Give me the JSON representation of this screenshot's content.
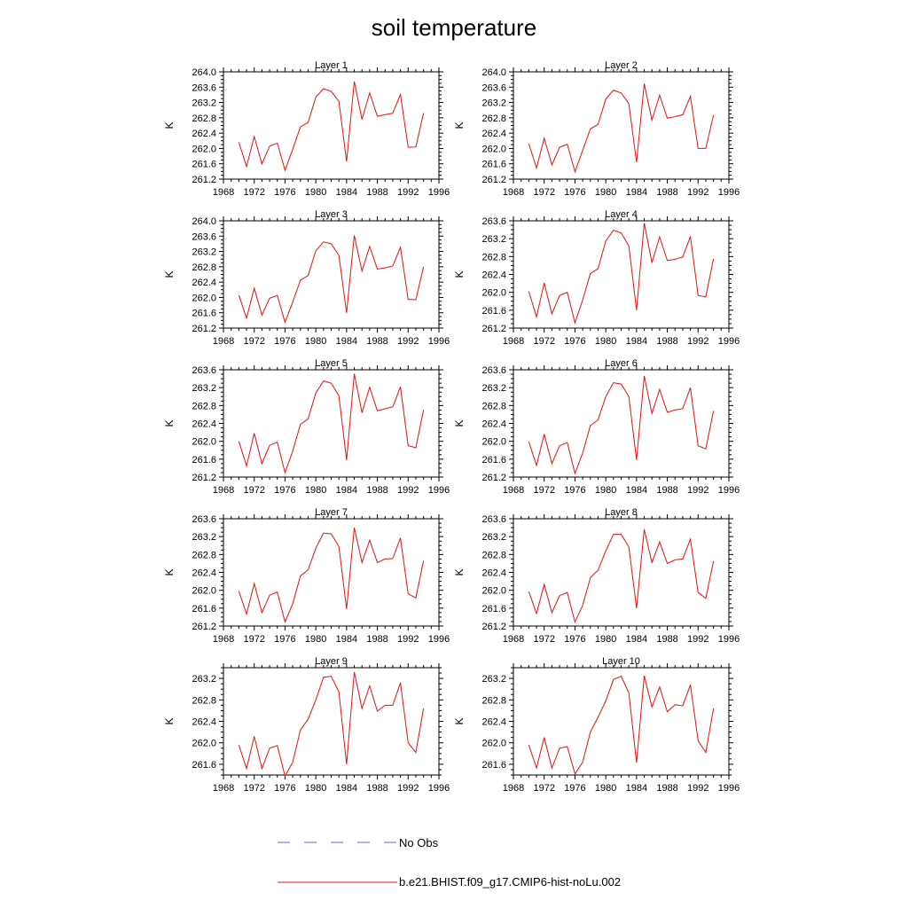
{
  "title": "soil temperature",
  "legend": {
    "items": [
      {
        "label": "No Obs",
        "color": "#6a6ad8",
        "style": "dashed"
      },
      {
        "label": "b.e21.BHIST.f09_g17.CMIP6-hist-noLu.002",
        "color": "#e81010",
        "style": "solid"
      }
    ]
  },
  "colors": {
    "series": "#e81010",
    "obs": "#6a6ad8"
  },
  "chart_data": [
    {
      "type": "line",
      "title": "Layer 1",
      "xlabel": "",
      "ylabel": "K",
      "xlim": [
        1968,
        1996
      ],
      "ylim": [
        261.2,
        264.0
      ],
      "xticks": [
        1968,
        1972,
        1976,
        1980,
        1984,
        1988,
        1992,
        1996
      ],
      "yticks": [
        261.2,
        261.6,
        262.0,
        262.4,
        262.8,
        263.2,
        263.6,
        264.0
      ],
      "x": [
        1970,
        1971,
        1972,
        1973,
        1974,
        1975,
        1976,
        1977,
        1978,
        1979,
        1980,
        1981,
        1982,
        1983,
        1984,
        1985,
        1986,
        1987,
        1988,
        1989,
        1990,
        1991,
        1992,
        1993,
        1994
      ],
      "series": [
        {
          "name": "b.e21.BHIST.f09_g17.CMIP6-hist-noLu.002",
          "values": [
            262.16,
            261.53,
            262.31,
            261.6,
            262.06,
            262.14,
            261.43,
            261.98,
            262.56,
            262.68,
            263.34,
            263.56,
            263.49,
            263.23,
            261.66,
            263.75,
            262.76,
            263.45,
            262.84,
            262.88,
            262.92,
            263.41,
            262.03,
            262.04,
            262.92
          ]
        }
      ]
    },
    {
      "type": "line",
      "title": "Layer 2",
      "xlabel": "",
      "ylabel": "K",
      "xlim": [
        1968,
        1996
      ],
      "ylim": [
        261.2,
        264.0
      ],
      "xticks": [
        1968,
        1972,
        1976,
        1980,
        1984,
        1988,
        1992,
        1996
      ],
      "yticks": [
        261.2,
        261.6,
        262.0,
        262.4,
        262.8,
        263.2,
        263.6,
        264.0
      ],
      "x": [
        1970,
        1971,
        1972,
        1973,
        1974,
        1975,
        1976,
        1977,
        1978,
        1979,
        1980,
        1981,
        1982,
        1983,
        1984,
        1985,
        1986,
        1987,
        1988,
        1989,
        1990,
        1991,
        1992,
        1993,
        1994
      ],
      "series": [
        {
          "name": "b.e21.BHIST.f09_g17.CMIP6-hist-noLu.002",
          "values": [
            262.12,
            261.49,
            262.27,
            261.57,
            262.03,
            262.11,
            261.39,
            261.95,
            262.51,
            262.63,
            263.29,
            263.52,
            263.45,
            263.17,
            261.64,
            263.69,
            262.74,
            263.39,
            262.79,
            262.83,
            262.88,
            263.36,
            262.0,
            262.0,
            262.87
          ]
        }
      ]
    },
    {
      "type": "line",
      "title": "Layer 3",
      "xlabel": "",
      "ylabel": "K",
      "xlim": [
        1968,
        1996
      ],
      "ylim": [
        261.2,
        264.0
      ],
      "xticks": [
        1968,
        1972,
        1976,
        1980,
        1984,
        1988,
        1992,
        1996
      ],
      "yticks": [
        261.2,
        261.6,
        262.0,
        262.4,
        262.8,
        263.2,
        263.6,
        264.0
      ],
      "x": [
        1970,
        1971,
        1972,
        1973,
        1974,
        1975,
        1976,
        1977,
        1978,
        1979,
        1980,
        1981,
        1982,
        1983,
        1984,
        1985,
        1986,
        1987,
        1988,
        1989,
        1990,
        1991,
        1992,
        1993,
        1994
      ],
      "series": [
        {
          "name": "b.e21.BHIST.f09_g17.CMIP6-hist-noLu.002",
          "values": [
            262.06,
            261.46,
            262.24,
            261.54,
            261.98,
            262.05,
            261.35,
            261.88,
            262.45,
            262.57,
            263.22,
            263.45,
            263.4,
            263.1,
            261.6,
            263.62,
            262.69,
            263.33,
            262.74,
            262.77,
            262.82,
            263.31,
            261.95,
            261.94,
            262.8
          ]
        }
      ]
    },
    {
      "type": "line",
      "title": "Layer 4",
      "xlabel": "",
      "ylabel": "K",
      "xlim": [
        1968,
        1996
      ],
      "ylim": [
        261.2,
        263.6
      ],
      "xticks": [
        1968,
        1972,
        1976,
        1980,
        1984,
        1988,
        1992,
        1996
      ],
      "yticks": [
        261.2,
        261.6,
        262.0,
        262.4,
        262.8,
        263.2,
        263.6
      ],
      "x": [
        1970,
        1971,
        1972,
        1973,
        1974,
        1975,
        1976,
        1977,
        1978,
        1979,
        1980,
        1981,
        1982,
        1983,
        1984,
        1985,
        1986,
        1987,
        1988,
        1989,
        1990,
        1991,
        1992,
        1993,
        1994
      ],
      "series": [
        {
          "name": "b.e21.BHIST.f09_g17.CMIP6-hist-noLu.002",
          "values": [
            262.02,
            261.45,
            262.21,
            261.52,
            261.93,
            262.0,
            261.32,
            261.83,
            262.42,
            262.53,
            263.15,
            263.39,
            263.33,
            263.04,
            261.6,
            263.55,
            262.66,
            263.24,
            262.71,
            262.74,
            262.79,
            263.25,
            261.93,
            261.9,
            262.75
          ]
        }
      ]
    },
    {
      "type": "line",
      "title": "Layer 5",
      "xlabel": "",
      "ylabel": "K",
      "xlim": [
        1968,
        1996
      ],
      "ylim": [
        261.2,
        263.6
      ],
      "xticks": [
        1968,
        1972,
        1976,
        1980,
        1984,
        1988,
        1992,
        1996
      ],
      "yticks": [
        261.2,
        261.6,
        262.0,
        262.4,
        262.8,
        263.2,
        263.6
      ],
      "x": [
        1970,
        1971,
        1972,
        1973,
        1974,
        1975,
        1976,
        1977,
        1978,
        1979,
        1980,
        1981,
        1982,
        1983,
        1984,
        1985,
        1986,
        1987,
        1988,
        1989,
        1990,
        1991,
        1992,
        1993,
        1994
      ],
      "series": [
        {
          "name": "b.e21.BHIST.f09_g17.CMIP6-hist-noLu.002",
          "values": [
            262.0,
            261.45,
            262.18,
            261.5,
            261.91,
            261.98,
            261.3,
            261.78,
            262.38,
            262.5,
            263.08,
            263.35,
            263.3,
            263.02,
            261.58,
            263.51,
            262.64,
            263.21,
            262.68,
            262.73,
            262.77,
            263.22,
            261.9,
            261.86,
            262.7
          ]
        }
      ]
    },
    {
      "type": "line",
      "title": "Layer 6",
      "xlabel": "",
      "ylabel": "K",
      "xlim": [
        1968,
        1996
      ],
      "ylim": [
        261.2,
        263.6
      ],
      "xticks": [
        1968,
        1972,
        1976,
        1980,
        1984,
        1988,
        1992,
        1996
      ],
      "yticks": [
        261.2,
        261.6,
        262.0,
        262.4,
        262.8,
        263.2,
        263.6
      ],
      "x": [
        1970,
        1971,
        1972,
        1973,
        1974,
        1975,
        1976,
        1977,
        1978,
        1979,
        1980,
        1981,
        1982,
        1983,
        1984,
        1985,
        1986,
        1987,
        1988,
        1989,
        1990,
        1991,
        1992,
        1993,
        1994
      ],
      "series": [
        {
          "name": "b.e21.BHIST.f09_g17.CMIP6-hist-noLu.002",
          "values": [
            261.99,
            261.46,
            262.16,
            261.5,
            261.9,
            261.97,
            261.28,
            261.74,
            262.35,
            262.48,
            263.0,
            263.31,
            263.28,
            263.0,
            261.58,
            263.46,
            262.62,
            263.16,
            262.65,
            262.7,
            262.73,
            263.2,
            261.9,
            261.83,
            262.68
          ]
        }
      ]
    },
    {
      "type": "line",
      "title": "Layer 7",
      "xlabel": "",
      "ylabel": "K",
      "xlim": [
        1968,
        1996
      ],
      "ylim": [
        261.2,
        263.6
      ],
      "xticks": [
        1968,
        1972,
        1976,
        1980,
        1984,
        1988,
        1992,
        1996
      ],
      "yticks": [
        261.2,
        261.6,
        262.0,
        262.4,
        262.8,
        263.2,
        263.6
      ],
      "x": [
        1970,
        1971,
        1972,
        1973,
        1974,
        1975,
        1976,
        1977,
        1978,
        1979,
        1980,
        1981,
        1982,
        1983,
        1984,
        1985,
        1986,
        1987,
        1988,
        1989,
        1990,
        1991,
        1992,
        1993,
        1994
      ],
      "series": [
        {
          "name": "b.e21.BHIST.f09_g17.CMIP6-hist-noLu.002",
          "values": [
            261.98,
            261.47,
            262.15,
            261.5,
            261.89,
            261.96,
            261.29,
            261.7,
            262.32,
            262.46,
            262.94,
            263.28,
            263.26,
            262.98,
            261.58,
            263.4,
            262.62,
            263.12,
            262.62,
            262.7,
            262.71,
            263.17,
            261.92,
            261.83,
            262.66
          ]
        }
      ]
    },
    {
      "type": "line",
      "title": "Layer 8",
      "xlabel": "",
      "ylabel": "K",
      "xlim": [
        1968,
        1996
      ],
      "ylim": [
        261.2,
        263.6
      ],
      "xticks": [
        1968,
        1972,
        1976,
        1980,
        1984,
        1988,
        1992,
        1996
      ],
      "yticks": [
        261.2,
        261.6,
        262.0,
        262.4,
        262.8,
        263.2,
        263.6
      ],
      "x": [
        1970,
        1971,
        1972,
        1973,
        1974,
        1975,
        1976,
        1977,
        1978,
        1979,
        1980,
        1981,
        1982,
        1983,
        1984,
        1985,
        1986,
        1987,
        1988,
        1989,
        1990,
        1991,
        1992,
        1993,
        1994
      ],
      "series": [
        {
          "name": "b.e21.BHIST.f09_g17.CMIP6-hist-noLu.002",
          "values": [
            261.97,
            261.48,
            262.13,
            261.5,
            261.88,
            261.95,
            261.29,
            261.66,
            262.28,
            262.45,
            262.88,
            263.25,
            263.25,
            262.97,
            261.6,
            263.36,
            262.62,
            263.08,
            262.6,
            262.68,
            262.7,
            263.14,
            261.95,
            261.82,
            262.65
          ]
        }
      ]
    },
    {
      "type": "line",
      "title": "Layer 9",
      "xlabel": "",
      "ylabel": "K",
      "xlim": [
        1968,
        1996
      ],
      "ylim": [
        261.4,
        263.4
      ],
      "xticks": [
        1968,
        1972,
        1976,
        1980,
        1984,
        1988,
        1992,
        1996
      ],
      "yticks": [
        261.6,
        262.0,
        262.4,
        262.8,
        263.2
      ],
      "x": [
        1970,
        1971,
        1972,
        1973,
        1974,
        1975,
        1976,
        1977,
        1978,
        1979,
        1980,
        1981,
        1982,
        1983,
        1984,
        1985,
        1986,
        1987,
        1988,
        1989,
        1990,
        1991,
        1992,
        1993,
        1994
      ],
      "series": [
        {
          "name": "b.e21.BHIST.f09_g17.CMIP6-hist-noLu.002",
          "values": [
            261.96,
            261.52,
            262.12,
            261.52,
            261.9,
            261.95,
            261.38,
            261.64,
            262.24,
            262.44,
            262.8,
            263.22,
            263.24,
            262.95,
            261.6,
            263.32,
            262.64,
            263.06,
            262.59,
            262.7,
            262.7,
            263.12,
            262.0,
            261.82,
            262.64
          ]
        }
      ]
    },
    {
      "type": "line",
      "title": "Layer 10",
      "xlabel": "",
      "ylabel": "K",
      "xlim": [
        1968,
        1996
      ],
      "ylim": [
        261.4,
        263.4
      ],
      "xticks": [
        1968,
        1972,
        1976,
        1980,
        1984,
        1988,
        1992,
        1996
      ],
      "yticks": [
        261.6,
        262.0,
        262.4,
        262.8,
        263.2
      ],
      "x": [
        1970,
        1971,
        1972,
        1973,
        1974,
        1975,
        1976,
        1977,
        1978,
        1979,
        1980,
        1981,
        1982,
        1983,
        1984,
        1985,
        1986,
        1987,
        1988,
        1989,
        1990,
        1991,
        1992,
        1993,
        1994
      ],
      "series": [
        {
          "name": "b.e21.BHIST.f09_g17.CMIP6-hist-noLu.002",
          "values": [
            261.96,
            261.53,
            262.1,
            261.53,
            261.9,
            261.93,
            261.42,
            261.64,
            262.2,
            262.48,
            262.78,
            263.18,
            263.24,
            262.93,
            261.63,
            263.25,
            262.67,
            263.04,
            262.58,
            262.71,
            262.69,
            263.08,
            262.04,
            261.82,
            262.64
          ]
        }
      ]
    }
  ]
}
